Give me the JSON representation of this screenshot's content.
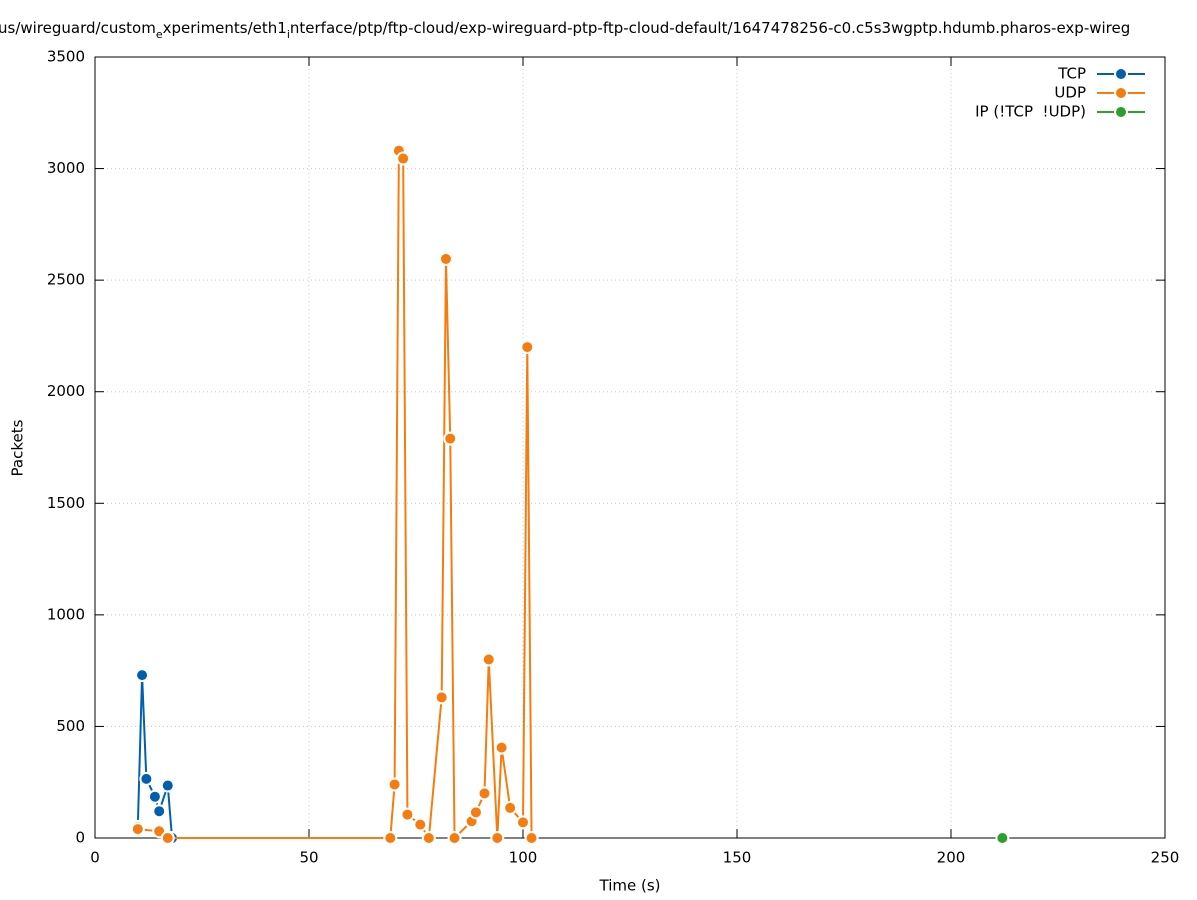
{
  "chart_data": {
    "type": "line",
    "title_parts": [
      "us/wireguard/custom",
      "e",
      "xperiments/eth1",
      "i",
      "nterface/ptp/ftp-cloud/exp-wireguard-ptp-ftp-cloud-default/1647478256-c0.c5s3wgptp.hdumb.pharos-exp-wireg"
    ],
    "xlabel": "Time (s)",
    "ylabel": "Packets",
    "xlim": [
      0,
      250
    ],
    "xticks": [
      0,
      50,
      100,
      150,
      200,
      250
    ],
    "ylim": [
      0,
      3500
    ],
    "yticks": [
      0,
      500,
      1000,
      1500,
      2000,
      2500,
      3000,
      3500
    ],
    "grid": true,
    "legend": "top-right",
    "series": [
      {
        "name": "TCP",
        "color": "#0060ad",
        "x": [
          10,
          11,
          12,
          14,
          15,
          17,
          18
        ],
        "values": [
          50,
          730,
          265,
          185,
          120,
          235,
          0
        ]
      },
      {
        "name": "UDP",
        "color": "#f57c0f",
        "x": [
          10,
          15,
          17,
          69,
          70,
          71,
          72,
          73,
          76,
          78,
          81,
          82,
          83,
          84,
          88,
          89,
          91,
          92,
          94,
          95,
          97,
          100,
          101,
          102
        ],
        "values": [
          40,
          30,
          0,
          0,
          240,
          3080,
          3045,
          105,
          60,
          0,
          630,
          2595,
          1790,
          0,
          75,
          115,
          200,
          800,
          0,
          405,
          135,
          70,
          2200,
          0
        ]
      },
      {
        "name": "IP (!TCP  !UDP)",
        "color": "#2ca02c",
        "x": [
          212
        ],
        "values": [
          0
        ]
      }
    ]
  }
}
